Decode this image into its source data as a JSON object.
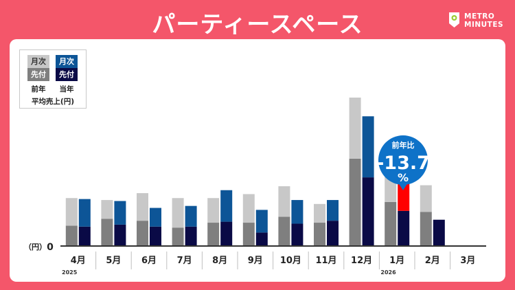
{
  "page_title": "パーティースペース",
  "logo": {
    "line1": "METRO",
    "line2": "MINUTES"
  },
  "legend": {
    "monthly": "月次",
    "advance": "先付",
    "prev_year": "前年",
    "this_year": "当年",
    "caption": "平均売上(円)"
  },
  "callout": {
    "label": "前年比",
    "value": "-13.7",
    "unit": "%"
  },
  "colors": {
    "background": "#f4566a",
    "prev_monthly": "#c8c8c8",
    "prev_advance": "#7f7f7f",
    "cur_monthly": "#0d5597",
    "cur_advance": "#0a0a46",
    "highlight": "#ff0000",
    "callout": "#0e72c8"
  },
  "chart_data": {
    "type": "bar",
    "stacked": true,
    "grouped": true,
    "y_unit_label": "（円）",
    "y_zero_label": "0",
    "ylim": [
      0,
      150
    ],
    "categories": [
      "4月",
      "5月",
      "6月",
      "7月",
      "8月",
      "9月",
      "10月",
      "11月",
      "12月",
      "1月",
      "2月",
      "3月"
    ],
    "year_labels": [
      {
        "text": "2025",
        "category": "4月"
      },
      {
        "text": "2026",
        "category": "1月"
      }
    ],
    "series": [
      {
        "group": "前年",
        "component": "先付",
        "values": [
          20,
          27,
          25,
          18,
          23,
          23,
          29,
          23,
          88,
          44,
          34,
          null
        ]
      },
      {
        "group": "前年",
        "component": "月次",
        "values": [
          28,
          19,
          28,
          30,
          25,
          29,
          31,
          19,
          62,
          29,
          27,
          null
        ]
      },
      {
        "group": "当年",
        "component": "先付",
        "values": [
          19,
          21,
          19,
          19,
          24,
          13,
          22,
          25,
          69,
          35,
          26,
          null
        ]
      },
      {
        "group": "当年",
        "component": "月次",
        "values": [
          28,
          24,
          19,
          21,
          32,
          23,
          24,
          21,
          62,
          29,
          null,
          null
        ]
      }
    ],
    "highlight": {
      "category": "1月",
      "group": "当年",
      "component": "月次"
    }
  }
}
